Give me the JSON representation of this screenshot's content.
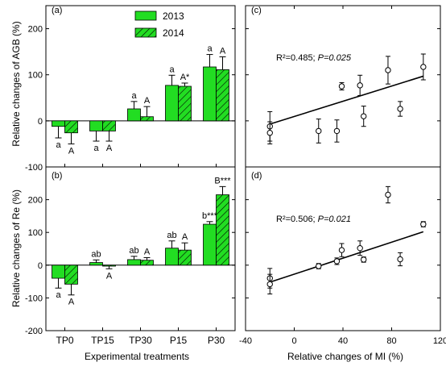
{
  "chart_data": [
    {
      "panel": "a",
      "panel_label": "(a)",
      "type": "bar",
      "ylabel": "Relative changes of AGB (%)",
      "ylim": [
        -100,
        250
      ],
      "yticks": [
        -100,
        0,
        100,
        200
      ],
      "categories": [
        "TP0",
        "TP15",
        "TP30",
        "P15",
        "P30"
      ],
      "series": [
        {
          "name": "2013",
          "color": "#22dd22",
          "pattern": "solid",
          "values": [
            -12,
            -22,
            26,
            77,
            117
          ],
          "errors": [
            25,
            22,
            16,
            22,
            27
          ],
          "labels": [
            "a",
            "a",
            "a",
            "a",
            "a"
          ],
          "label_below": [
            true,
            true,
            false,
            false,
            false
          ]
        },
        {
          "name": "2014",
          "color": "#22dd22",
          "pattern": "hatched",
          "values": [
            -26,
            -22,
            9,
            75,
            111
          ],
          "errors": [
            24,
            22,
            22,
            7,
            28
          ],
          "labels": [
            "A",
            "A",
            "A",
            "A*",
            "A"
          ],
          "label_below": [
            true,
            true,
            false,
            false,
            false
          ]
        }
      ]
    },
    {
      "panel": "b",
      "panel_label": "(b)",
      "type": "bar",
      "ylabel": "Relative changes of Re (%)",
      "xlabel": "Experimental treatments",
      "ylim": [
        -200,
        300
      ],
      "yticks": [
        -200,
        -100,
        0,
        100,
        200
      ],
      "categories": [
        "TP0",
        "TP15",
        "TP30",
        "P15",
        "P30"
      ],
      "series": [
        {
          "name": "2013",
          "values": [
            -40,
            8,
            17,
            52,
            125
          ],
          "errors": [
            30,
            8,
            10,
            22,
            8
          ],
          "labels": [
            "a",
            "ab",
            "ab",
            "ab",
            "b***"
          ],
          "label_below": [
            true,
            false,
            false,
            false,
            false
          ]
        },
        {
          "name": "2014",
          "values": [
            -58,
            -3,
            15,
            46,
            215
          ],
          "errors": [
            33,
            8,
            8,
            22,
            25
          ],
          "labels": [
            "A",
            "A",
            "A",
            "A",
            "B***"
          ],
          "label_below": [
            true,
            true,
            false,
            false,
            false
          ]
        }
      ]
    },
    {
      "panel": "c",
      "panel_label": "(c)",
      "type": "scatter",
      "ylim": [
        -100,
        250
      ],
      "xlim": [
        -40,
        120
      ],
      "annotation_r2": "R²=0.485; ",
      "annotation_p": "P=0.025",
      "points": [
        {
          "x": -20,
          "y": -12,
          "err": 32
        },
        {
          "x": -20,
          "y": -26,
          "err": 24
        },
        {
          "x": 20,
          "y": -22,
          "err": 26
        },
        {
          "x": 35,
          "y": -22,
          "err": 24
        },
        {
          "x": 39,
          "y": 75,
          "err": 8
        },
        {
          "x": 54,
          "y": 77,
          "err": 22
        },
        {
          "x": 57,
          "y": 10,
          "err": 22
        },
        {
          "x": 77,
          "y": 110,
          "err": 30
        },
        {
          "x": 87,
          "y": 26,
          "err": 16
        },
        {
          "x": 106,
          "y": 117,
          "err": 28
        }
      ],
      "fit_line": {
        "x": [
          -20,
          106
        ],
        "y": [
          -7,
          97
        ]
      }
    },
    {
      "panel": "d",
      "panel_label": "(d)",
      "type": "scatter",
      "ylim": [
        -200,
        300
      ],
      "xlim": [
        -40,
        120
      ],
      "xlabel": "Relative changes of MI (%)",
      "xticks": [
        -40,
        0,
        40,
        80,
        120
      ],
      "annotation_r2": "R²=0.506; ",
      "annotation_p": "P=0.021",
      "points": [
        {
          "x": -20,
          "y": -40,
          "err": 30
        },
        {
          "x": -20,
          "y": -58,
          "err": 30
        },
        {
          "x": 20,
          "y": -3,
          "err": 8
        },
        {
          "x": 35,
          "y": 12,
          "err": 10
        },
        {
          "x": 39,
          "y": 46,
          "err": 20
        },
        {
          "x": 54,
          "y": 52,
          "err": 22
        },
        {
          "x": 57,
          "y": 17,
          "err": 8
        },
        {
          "x": 77,
          "y": 215,
          "err": 25
        },
        {
          "x": 87,
          "y": 18,
          "err": 20
        },
        {
          "x": 106,
          "y": 125,
          "err": 8
        }
      ],
      "fit_line": {
        "x": [
          -20,
          106
        ],
        "y": [
          -52,
          102
        ]
      }
    }
  ]
}
